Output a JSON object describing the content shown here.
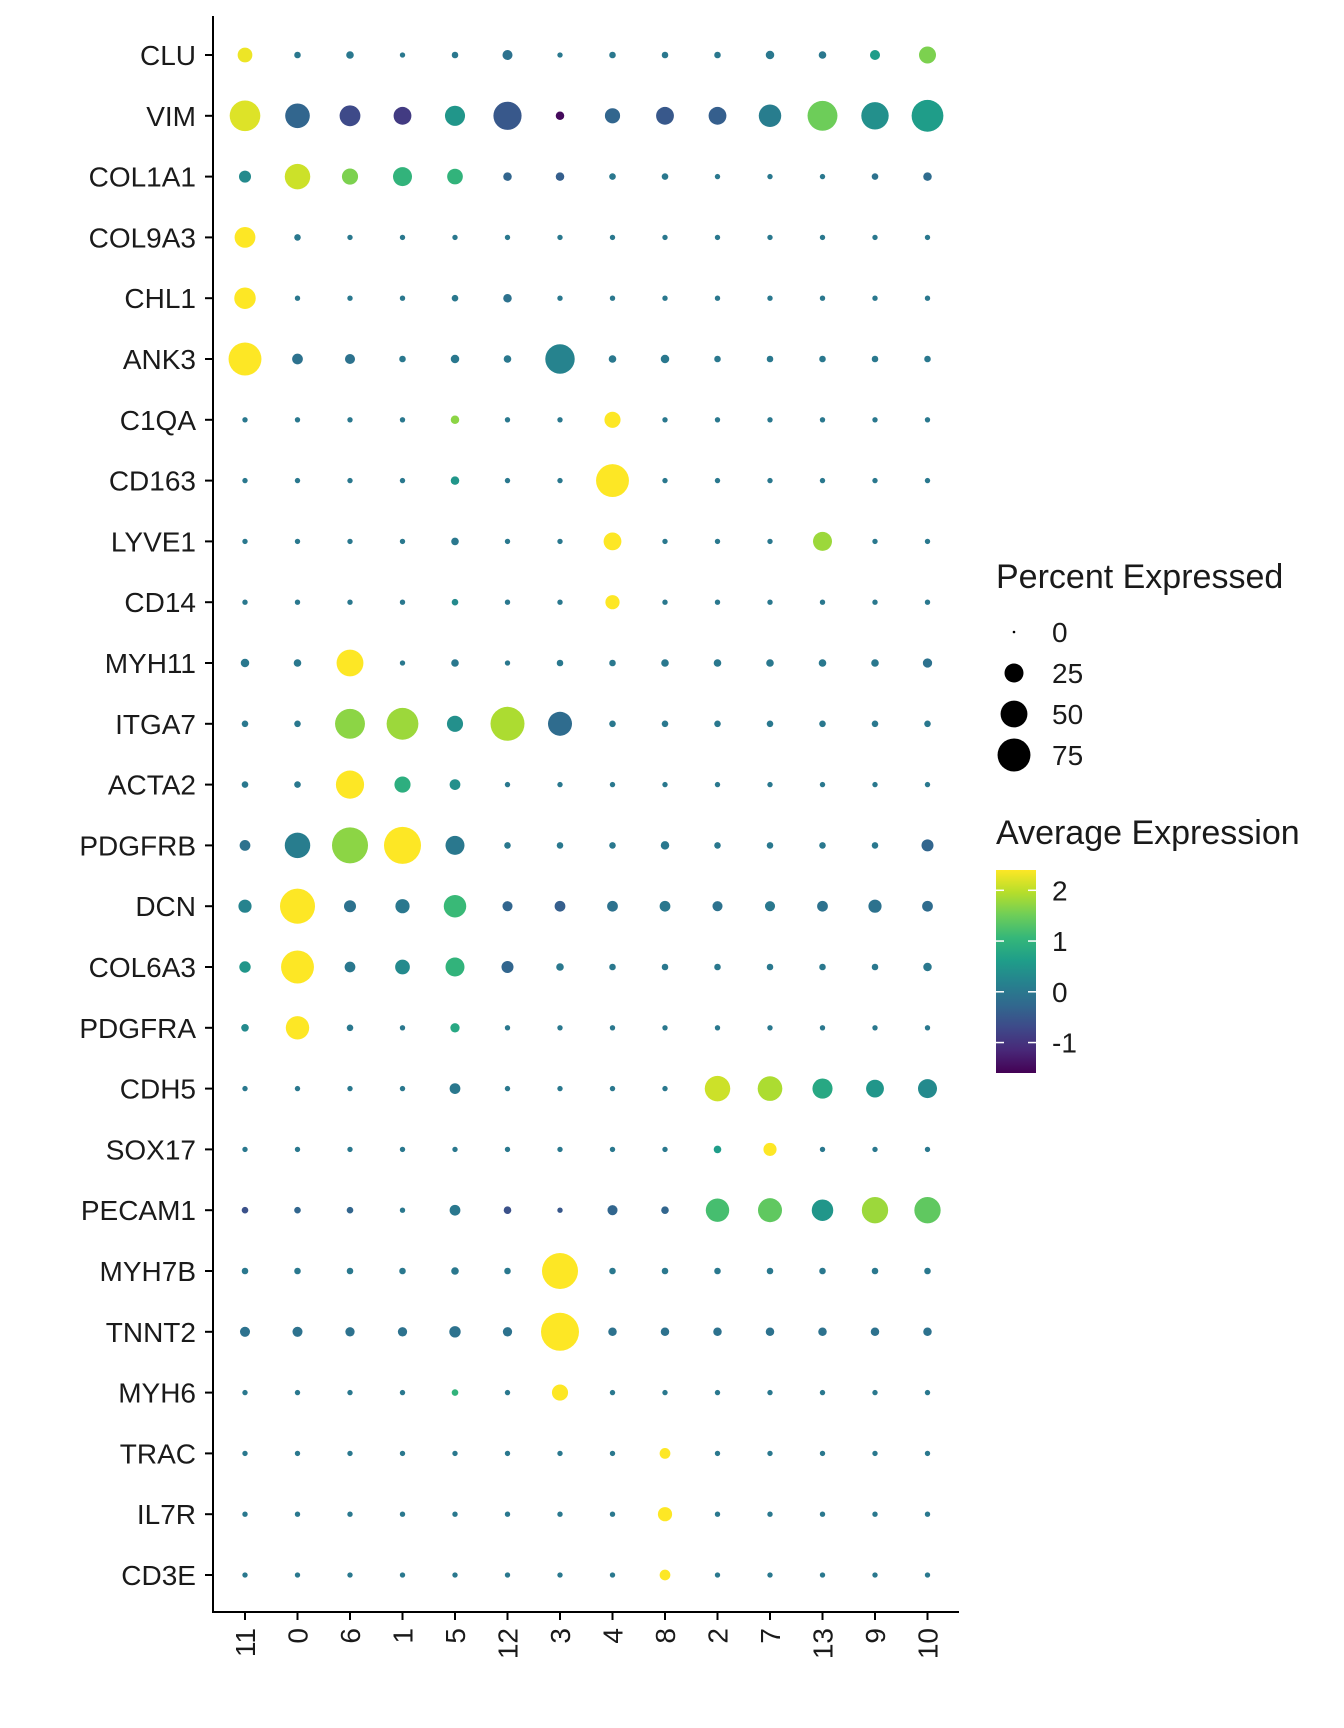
{
  "chart_data": {
    "type": "dotplot",
    "title": "",
    "xlabel": "",
    "ylabel": "",
    "clusters": [
      "11",
      "0",
      "6",
      "1",
      "5",
      "12",
      "3",
      "4",
      "8",
      "2",
      "7",
      "13",
      "9",
      "10"
    ],
    "genes": [
      "CLU",
      "VIM",
      "COL1A1",
      "COL9A3",
      "CHL1",
      "ANK3",
      "C1QA",
      "CD163",
      "LYVE1",
      "CD14",
      "MYH11",
      "ITGA7",
      "ACTA2",
      "PDGFRB",
      "DCN",
      "COL6A3",
      "PDGFRA",
      "CDH5",
      "SOX17",
      "PECAM1",
      "MYH7B",
      "TNNT2",
      "MYH6",
      "TRAC",
      "IL7R",
      "CD3E"
    ],
    "pct_scale_max": 100,
    "color_range": [
      -1.6,
      2.4
    ],
    "rows": [
      {
        "gene": "CLU",
        "pct": [
          15,
          3,
          4,
          2,
          3,
          7,
          2,
          3,
          3,
          3,
          5,
          4,
          7,
          20
        ],
        "avg": [
          2.3,
          0.0,
          0.0,
          0.0,
          0.0,
          -0.1,
          0.0,
          0.0,
          0.0,
          0.0,
          0.0,
          0.0,
          0.6,
          1.6
        ]
      },
      {
        "gene": "VIM",
        "pct": [
          65,
          42,
          30,
          22,
          28,
          55,
          5,
          16,
          22,
          22,
          35,
          62,
          52,
          70
        ],
        "avg": [
          2.2,
          -0.3,
          -0.7,
          -0.9,
          0.5,
          -0.5,
          -1.5,
          -0.3,
          -0.5,
          -0.4,
          0.1,
          1.5,
          0.4,
          0.6
        ]
      },
      {
        "gene": "COL1A1",
        "pct": [
          10,
          45,
          18,
          25,
          17,
          5,
          5,
          3,
          3,
          2,
          2,
          2,
          3,
          5
        ],
        "avg": [
          0.3,
          2.1,
          1.6,
          1.0,
          1.0,
          -0.3,
          -0.4,
          0.0,
          0.0,
          0.0,
          0.0,
          0.0,
          -0.1,
          -0.2
        ]
      },
      {
        "gene": "COL9A3",
        "pct": [
          30,
          3,
          2,
          2,
          2,
          2,
          2,
          2,
          2,
          2,
          2,
          2,
          2,
          2
        ],
        "avg": [
          2.4,
          0.0,
          0.0,
          0.0,
          0.0,
          0.0,
          0.0,
          0.0,
          0.0,
          0.0,
          0.0,
          0.0,
          0.0,
          0.0
        ]
      },
      {
        "gene": "CHL1",
        "pct": [
          32,
          2,
          2,
          2,
          3,
          5,
          2,
          2,
          2,
          2,
          2,
          2,
          2,
          2
        ],
        "avg": [
          2.4,
          0.0,
          0.0,
          0.0,
          0.0,
          -0.1,
          0.0,
          0.0,
          0.0,
          0.0,
          0.0,
          0.0,
          0.0,
          0.0
        ]
      },
      {
        "gene": "ANK3",
        "pct": [
          75,
          8,
          7,
          3,
          5,
          4,
          60,
          4,
          5,
          3,
          3,
          3,
          3,
          3
        ],
        "avg": [
          2.4,
          -0.1,
          -0.1,
          0.0,
          0.0,
          0.0,
          0.2,
          0.0,
          0.0,
          0.0,
          0.0,
          0.0,
          0.0,
          0.0
        ]
      },
      {
        "gene": "C1QA",
        "pct": [
          2,
          2,
          2,
          2,
          5,
          2,
          2,
          18,
          2,
          2,
          2,
          2,
          2,
          2
        ],
        "avg": [
          0.0,
          0.0,
          0.0,
          0.0,
          1.7,
          0.0,
          0.0,
          2.4,
          0.0,
          0.0,
          0.0,
          0.0,
          0.0,
          0.0
        ]
      },
      {
        "gene": "CD163",
        "pct": [
          2,
          2,
          2,
          2,
          5,
          2,
          2,
          75,
          2,
          2,
          2,
          2,
          2,
          2
        ],
        "avg": [
          0.0,
          0.0,
          0.0,
          0.0,
          0.5,
          0.0,
          0.0,
          2.4,
          0.0,
          0.0,
          0.0,
          0.0,
          0.0,
          0.0
        ]
      },
      {
        "gene": "LYVE1",
        "pct": [
          2,
          2,
          2,
          2,
          4,
          2,
          2,
          22,
          2,
          2,
          2,
          25,
          2,
          2
        ],
        "avg": [
          0.0,
          0.0,
          0.0,
          0.0,
          0.0,
          0.0,
          0.0,
          2.4,
          0.0,
          0.0,
          0.0,
          1.8,
          0.0,
          0.0
        ]
      },
      {
        "gene": "CD14",
        "pct": [
          2,
          2,
          2,
          2,
          3,
          2,
          2,
          14,
          2,
          2,
          2,
          2,
          2,
          2
        ],
        "avg": [
          0.0,
          0.0,
          0.0,
          0.0,
          0.3,
          0.0,
          0.0,
          2.4,
          0.0,
          0.0,
          0.0,
          0.0,
          0.0,
          0.0
        ]
      },
      {
        "gene": "MYH11",
        "pct": [
          5,
          4,
          50,
          2,
          4,
          2,
          3,
          3,
          4,
          4,
          4,
          4,
          4,
          6
        ],
        "avg": [
          0.0,
          0.0,
          2.4,
          0.0,
          0.0,
          0.0,
          0.0,
          0.0,
          0.0,
          0.0,
          0.0,
          0.0,
          0.0,
          -0.1
        ]
      },
      {
        "gene": "ITGA7",
        "pct": [
          3,
          3,
          62,
          70,
          18,
          80,
          40,
          3,
          3,
          3,
          3,
          3,
          3,
          3
        ],
        "avg": [
          0.0,
          0.0,
          1.7,
          1.8,
          0.4,
          1.9,
          -0.2,
          0.0,
          0.0,
          0.0,
          0.0,
          0.0,
          0.0,
          0.0
        ]
      },
      {
        "gene": "ACTA2",
        "pct": [
          3,
          3,
          55,
          18,
          8,
          2,
          2,
          2,
          2,
          2,
          2,
          2,
          2,
          2
        ],
        "avg": [
          0.0,
          0.0,
          2.4,
          0.9,
          0.4,
          0.0,
          0.0,
          0.0,
          0.0,
          0.0,
          0.0,
          0.0,
          0.0,
          0.0
        ]
      },
      {
        "gene": "PDGFRB",
        "pct": [
          8,
          45,
          90,
          95,
          25,
          3,
          3,
          3,
          5,
          3,
          3,
          3,
          3,
          10
        ],
        "avg": [
          -0.1,
          0.1,
          1.7,
          2.4,
          0.0,
          0.0,
          0.0,
          0.0,
          0.0,
          0.0,
          0.0,
          0.0,
          0.0,
          -0.3
        ]
      },
      {
        "gene": "DCN",
        "pct": [
          12,
          85,
          10,
          14,
          35,
          7,
          8,
          8,
          8,
          7,
          7,
          8,
          12,
          8
        ],
        "avg": [
          0.2,
          2.4,
          -0.1,
          0.0,
          1.1,
          -0.3,
          -0.4,
          -0.1,
          0.0,
          -0.1,
          0.0,
          -0.1,
          -0.1,
          -0.2
        ]
      },
      {
        "gene": "COL6A3",
        "pct": [
          9,
          75,
          8,
          15,
          25,
          10,
          4,
          3,
          3,
          3,
          3,
          3,
          3,
          5
        ],
        "avg": [
          0.5,
          2.4,
          0.0,
          0.3,
          1.0,
          -0.3,
          0.0,
          0.0,
          0.0,
          0.0,
          0.0,
          0.0,
          0.0,
          0.0
        ]
      },
      {
        "gene": "PDGFRA",
        "pct": [
          4,
          38,
          3,
          2,
          6,
          2,
          2,
          2,
          2,
          2,
          2,
          2,
          2,
          2
        ],
        "avg": [
          0.3,
          2.4,
          0.0,
          0.0,
          0.8,
          0.0,
          0.0,
          0.0,
          0.0,
          0.0,
          0.0,
          0.0,
          0.0,
          0.0
        ]
      },
      {
        "gene": "CDH5",
        "pct": [
          2,
          2,
          2,
          2,
          8,
          2,
          2,
          2,
          2,
          45,
          42,
          28,
          22,
          25
        ],
        "avg": [
          0.0,
          0.0,
          0.0,
          0.0,
          0.0,
          0.0,
          0.0,
          0.0,
          0.0,
          2.1,
          1.9,
          0.8,
          0.5,
          0.3
        ]
      },
      {
        "gene": "SOX17",
        "pct": [
          2,
          2,
          2,
          2,
          2,
          2,
          2,
          2,
          2,
          4,
          12,
          2,
          2,
          2
        ],
        "avg": [
          0.0,
          0.0,
          0.0,
          0.0,
          0.0,
          0.0,
          0.0,
          0.0,
          0.0,
          0.6,
          2.4,
          0.0,
          0.0,
          0.0
        ]
      },
      {
        "gene": "PECAM1",
        "pct": [
          3,
          3,
          3,
          2,
          8,
          4,
          2,
          7,
          4,
          38,
          40,
          32,
          48,
          48
        ],
        "avg": [
          -0.6,
          -0.3,
          -0.3,
          0.0,
          0.0,
          -0.6,
          -0.5,
          -0.3,
          -0.3,
          1.2,
          1.4,
          0.5,
          1.8,
          1.4
        ]
      },
      {
        "gene": "MYH7B",
        "pct": [
          3,
          3,
          3,
          3,
          4,
          3,
          90,
          3,
          3,
          3,
          3,
          3,
          3,
          3
        ],
        "avg": [
          0.0,
          0.0,
          0.0,
          0.0,
          0.0,
          0.0,
          2.4,
          0.0,
          0.0,
          0.0,
          0.0,
          0.0,
          0.0,
          0.0
        ]
      },
      {
        "gene": "TNNT2",
        "pct": [
          7,
          7,
          6,
          6,
          9,
          6,
          100,
          5,
          5,
          5,
          5,
          5,
          5,
          5
        ],
        "avg": [
          -0.1,
          -0.1,
          -0.1,
          -0.1,
          -0.1,
          -0.1,
          2.4,
          -0.1,
          -0.1,
          -0.1,
          -0.1,
          -0.1,
          -0.1,
          -0.1
        ]
      },
      {
        "gene": "MYH6",
        "pct": [
          2,
          2,
          2,
          2,
          3,
          2,
          18,
          2,
          2,
          2,
          2,
          2,
          2,
          2
        ],
        "avg": [
          0.0,
          0.0,
          0.0,
          0.0,
          1.0,
          0.0,
          2.4,
          0.0,
          0.0,
          0.0,
          0.0,
          0.0,
          0.0,
          0.0
        ]
      },
      {
        "gene": "TRAC",
        "pct": [
          2,
          2,
          2,
          2,
          2,
          2,
          2,
          2,
          8,
          2,
          2,
          2,
          2,
          2
        ],
        "avg": [
          0.0,
          0.0,
          0.0,
          0.0,
          0.0,
          0.0,
          0.0,
          0.0,
          2.4,
          0.0,
          0.0,
          0.0,
          0.0,
          0.0
        ]
      },
      {
        "gene": "IL7R",
        "pct": [
          2,
          2,
          2,
          2,
          2,
          2,
          2,
          2,
          14,
          2,
          2,
          2,
          2,
          2
        ],
        "avg": [
          0.0,
          0.0,
          0.0,
          0.0,
          0.0,
          0.0,
          0.0,
          0.0,
          2.4,
          0.0,
          0.0,
          0.0,
          0.0,
          0.0
        ]
      },
      {
        "gene": "CD3E",
        "pct": [
          2,
          2,
          2,
          2,
          2,
          2,
          2,
          2,
          8,
          2,
          2,
          2,
          2,
          2
        ],
        "avg": [
          0.0,
          0.0,
          0.0,
          0.0,
          0.0,
          0.0,
          0.0,
          0.0,
          2.4,
          0.0,
          0.0,
          0.0,
          0.0,
          0.0
        ]
      }
    ],
    "legend_size": {
      "title": "Percent Expressed",
      "values": [
        0,
        25,
        50,
        75
      ],
      "labels": [
        "0",
        "25",
        "50",
        "75"
      ]
    },
    "legend_color": {
      "title": "Average Expression",
      "ticks": [
        2,
        1,
        0,
        -1
      ],
      "labels": [
        "2",
        "1",
        "0",
        "-1"
      ],
      "colormap": "viridis",
      "stops": [
        "#440154",
        "#482878",
        "#3e4989",
        "#31688e",
        "#26828e",
        "#1f9e89",
        "#35b779",
        "#6ece58",
        "#b5de2b",
        "#fde725"
      ]
    }
  }
}
